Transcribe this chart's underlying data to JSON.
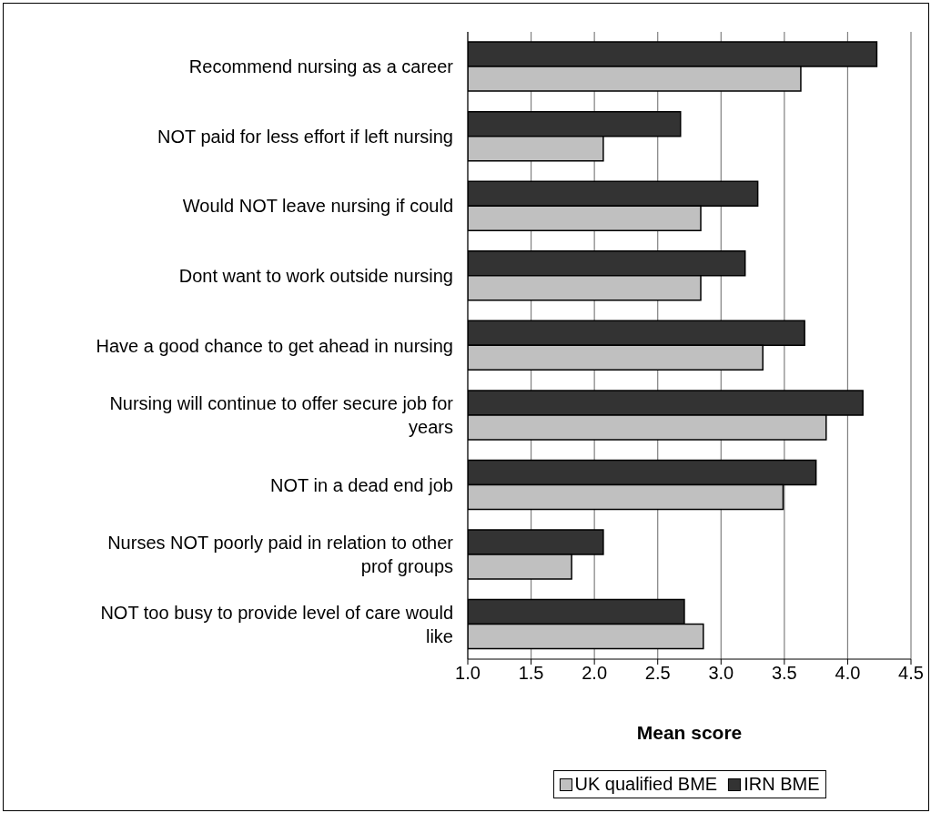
{
  "chart_data": {
    "type": "bar",
    "orientation": "horizontal",
    "categories": [
      "Recommend nursing as a career",
      "NOT paid for less effort if left nursing",
      "Would NOT leave nursing if could",
      "Dont want to work outside nursing",
      "Have a good chance to get ahead in nursing",
      "Nursing will continue to offer secure job for years",
      "NOT in a dead end job",
      "Nurses NOT poorly paid in relation to other prof groups",
      "NOT too busy to provide level of care would like"
    ],
    "series": [
      {
        "name": "UK qualified BME",
        "color": "#c0c0c0",
        "values": [
          3.63,
          2.07,
          2.84,
          2.84,
          3.33,
          3.83,
          3.49,
          1.82,
          2.86
        ]
      },
      {
        "name": "IRN BME",
        "color": "#333333",
        "values": [
          4.23,
          2.68,
          3.29,
          3.19,
          3.66,
          4.12,
          3.75,
          2.07,
          2.71
        ]
      }
    ],
    "xlabel": "Mean score",
    "xlim": [
      1,
      4.5
    ],
    "xticks": [
      {
        "value": 1,
        "label": "1.0"
      },
      1.5,
      {
        "value": 2,
        "label": "2.0"
      },
      2.5,
      {
        "value": 3,
        "label": "3.0"
      },
      3.5,
      {
        "value": 4,
        "label": "4.0"
      },
      4.5
    ],
    "grid": "x",
    "legend": "bottom"
  }
}
